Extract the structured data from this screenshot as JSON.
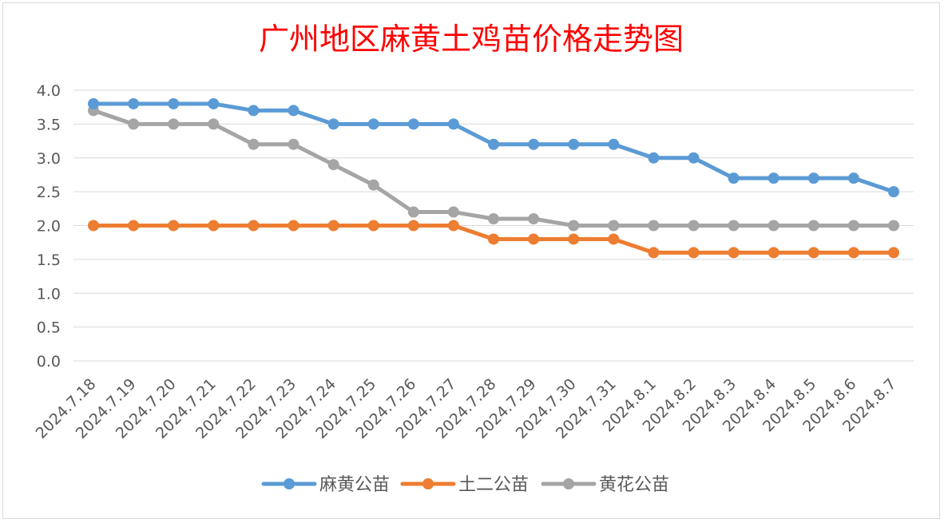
{
  "chart_data": {
    "type": "line",
    "title": "广州地区麻黄土鸡苗价格走势图",
    "xlabel": "",
    "ylabel": "",
    "ylim": [
      0,
      4
    ],
    "yticks": [
      "0.0",
      "0.5",
      "1.0",
      "1.5",
      "2.0",
      "2.5",
      "3.0",
      "3.5",
      "4.0"
    ],
    "grid": true,
    "legend_position": "bottom",
    "categories": [
      "2024.7.18",
      "2024.7.19",
      "2024.7.20",
      "2024.7.21",
      "2024.7.22",
      "2024.7.23",
      "2024.7.24",
      "2024.7.25",
      "2024.7.26",
      "2024.7.27",
      "2024.7.28",
      "2024.7.29",
      "2024.7.30",
      "2024.7.31",
      "2024.8.1",
      "2024.8.2",
      "2024.8.3",
      "2024.8.4",
      "2024.8.5",
      "2024.8.6",
      "2024.8.7"
    ],
    "series": [
      {
        "name": "麻黄公苗",
        "color": "#5b9bd5",
        "values": [
          3.8,
          3.8,
          3.8,
          3.8,
          3.7,
          3.7,
          3.5,
          3.5,
          3.5,
          3.5,
          3.2,
          3.2,
          3.2,
          3.2,
          3.0,
          3.0,
          2.7,
          2.7,
          2.7,
          2.7,
          2.5
        ]
      },
      {
        "name": "土二公苗",
        "color": "#ed7d31",
        "values": [
          2.0,
          2.0,
          2.0,
          2.0,
          2.0,
          2.0,
          2.0,
          2.0,
          2.0,
          2.0,
          1.8,
          1.8,
          1.8,
          1.8,
          1.6,
          1.6,
          1.6,
          1.6,
          1.6,
          1.6,
          1.6
        ]
      },
      {
        "name": "黄花公苗",
        "color": "#a5a5a5",
        "values": [
          3.7,
          3.5,
          3.5,
          3.5,
          3.2,
          3.2,
          2.9,
          2.6,
          2.2,
          2.2,
          2.1,
          2.1,
          2.0,
          2.0,
          2.0,
          2.0,
          2.0,
          2.0,
          2.0,
          2.0,
          2.0
        ]
      }
    ],
    "title_color": "#ff0000",
    "gridline_color": "#d9d9d9",
    "tick_label_color": "#595959"
  }
}
